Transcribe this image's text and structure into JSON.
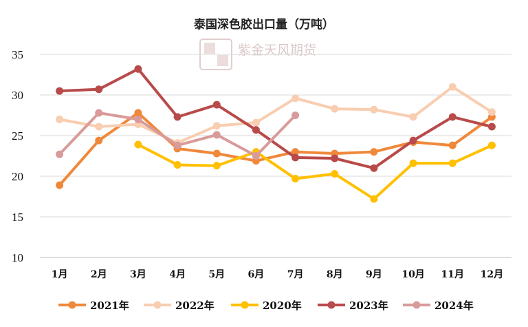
{
  "chart_data": {
    "type": "line",
    "title": "泰国深色胶出口量（万吨）",
    "watermark": "紫金天风期货",
    "categories": [
      "1月",
      "2月",
      "3月",
      "4月",
      "5月",
      "6月",
      "7月",
      "8月",
      "9月",
      "10月",
      "11月",
      "12月"
    ],
    "ylim": [
      10,
      35
    ],
    "yticks": [
      10,
      15,
      20,
      25,
      30,
      35
    ],
    "grid": "horizontal",
    "legend_position": "bottom",
    "series": [
      {
        "name": "2021年",
        "color": "#f0883a",
        "values": [
          18.9,
          24.4,
          27.8,
          23.4,
          22.8,
          21.9,
          23.0,
          22.8,
          23.0,
          24.2,
          23.8,
          27.3
        ]
      },
      {
        "name": "2022年",
        "color": "#f8cdb0",
        "values": [
          27.0,
          26.1,
          26.4,
          24.1,
          26.2,
          26.6,
          29.6,
          28.3,
          28.2,
          27.3,
          31.0,
          27.9
        ]
      },
      {
        "name": "2020年",
        "color": "#ffc000",
        "values": [
          null,
          null,
          23.9,
          21.4,
          21.3,
          23.0,
          19.7,
          20.3,
          17.2,
          21.6,
          21.6,
          23.8
        ]
      },
      {
        "name": "2023年",
        "color": "#b94a4a",
        "values": [
          30.5,
          30.7,
          33.2,
          27.3,
          28.8,
          25.7,
          22.3,
          22.2,
          21.0,
          24.4,
          27.3,
          26.1
        ]
      },
      {
        "name": "2024年",
        "color": "#d99a9a",
        "values": [
          22.7,
          27.8,
          27.0,
          23.8,
          25.1,
          22.5,
          27.5,
          null,
          null,
          null,
          null,
          null
        ]
      }
    ]
  }
}
